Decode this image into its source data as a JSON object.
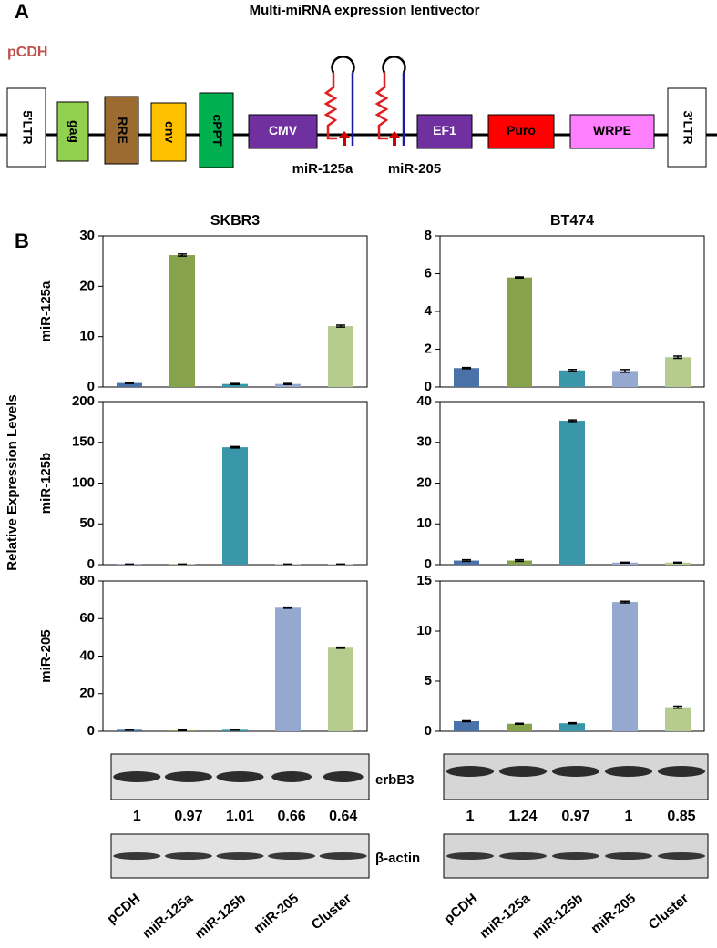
{
  "panel_labels": [
    "A",
    "B"
  ],
  "diagram": {
    "title": "Multi-miRNA expression lentivector",
    "vector": "pCDH",
    "elements": [
      "5'LTR",
      "gag",
      "RRE",
      "env",
      "cPPT",
      "CMV",
      "EF1",
      "Puro",
      "WRPE",
      "3'LTR"
    ],
    "mirnas": [
      "miR-125a",
      "miR-205"
    ]
  },
  "y_axis_label": "Relative Expression Levels",
  "chart_data": [
    {
      "type": "bar",
      "title": "SKBR3",
      "ylabel": "miR-125a",
      "values": [
        0.8,
        26.2,
        0.6,
        0.6,
        12.1
      ],
      "errors": [
        0.1,
        0.2,
        0.1,
        0.1,
        0.2
      ],
      "colors": [
        "#4a72a8",
        "#86a24a",
        "#3a97aa",
        "#94a8d0",
        "#b5cc8e"
      ],
      "ylim": [
        0,
        30
      ],
      "yticks": [
        0,
        10,
        20,
        30
      ]
    },
    {
      "type": "bar",
      "ylabel": "miR-125b",
      "values": [
        0.5,
        0.5,
        144,
        0.5,
        0.5
      ],
      "errors": [
        0.2,
        0.2,
        0.8,
        0.2,
        0.2
      ],
      "colors": [
        "#4a72a8",
        "#86a24a",
        "#3a97aa",
        "#94a8d0",
        "#b5cc8e"
      ],
      "ylim": [
        0,
        200
      ],
      "yticks": [
        0,
        50,
        100,
        150,
        200
      ]
    },
    {
      "type": "bar",
      "ylabel": "miR-205",
      "values": [
        0.8,
        0.5,
        0.8,
        65.8,
        44.5
      ],
      "errors": [
        0.2,
        0.2,
        0.2,
        0.3,
        0.3
      ],
      "colors": [
        "#4a72a8",
        "#86a24a",
        "#3a97aa",
        "#94a8d0",
        "#b5cc8e"
      ],
      "ylim": [
        0,
        80
      ],
      "yticks": [
        0,
        20,
        40,
        60,
        80
      ],
      "categories": [
        "pCDH",
        "miR-125a",
        "miR-125b",
        "miR-205",
        "Cluster"
      ]
    },
    {
      "type": "bar",
      "title": "BT474",
      "values": [
        1,
        5.8,
        0.88,
        0.85,
        1.58
      ],
      "errors": [
        0.03,
        0.03,
        0.05,
        0.07,
        0.06
      ],
      "colors": [
        "#4a72a8",
        "#86a24a",
        "#3a97aa",
        "#94a8d0",
        "#b5cc8e"
      ],
      "ylim": [
        0,
        8
      ],
      "yticks": [
        0,
        2,
        4,
        6,
        8
      ]
    },
    {
      "type": "bar",
      "values": [
        1,
        1,
        35.3,
        0.5,
        0.5
      ],
      "errors": [
        0.2,
        0.2,
        0.2,
        0.1,
        0.1
      ],
      "colors": [
        "#4a72a8",
        "#86a24a",
        "#3a97aa",
        "#94a8d0",
        "#b5cc8e"
      ],
      "ylim": [
        0,
        40
      ],
      "yticks": [
        0,
        10,
        20,
        30,
        40
      ]
    },
    {
      "type": "bar",
      "values": [
        1,
        0.75,
        0.8,
        12.9,
        2.4
      ],
      "errors": [
        0.05,
        0.05,
        0.05,
        0.08,
        0.1
      ],
      "colors": [
        "#4a72a8",
        "#86a24a",
        "#3a97aa",
        "#94a8d0",
        "#b5cc8e"
      ],
      "ylim": [
        0,
        15
      ],
      "yticks": [
        0,
        5,
        10,
        15
      ],
      "categories": [
        "pCDH",
        "miR-125a",
        "miR-125b",
        "miR-205",
        "Cluster"
      ]
    }
  ],
  "blots": {
    "labels": [
      "erbB3",
      "β-actin"
    ],
    "quantification": [
      [
        1,
        0.97,
        1.01,
        0.66,
        0.64
      ],
      [
        1,
        1.24,
        0.97,
        1,
        0.85
      ]
    ]
  }
}
